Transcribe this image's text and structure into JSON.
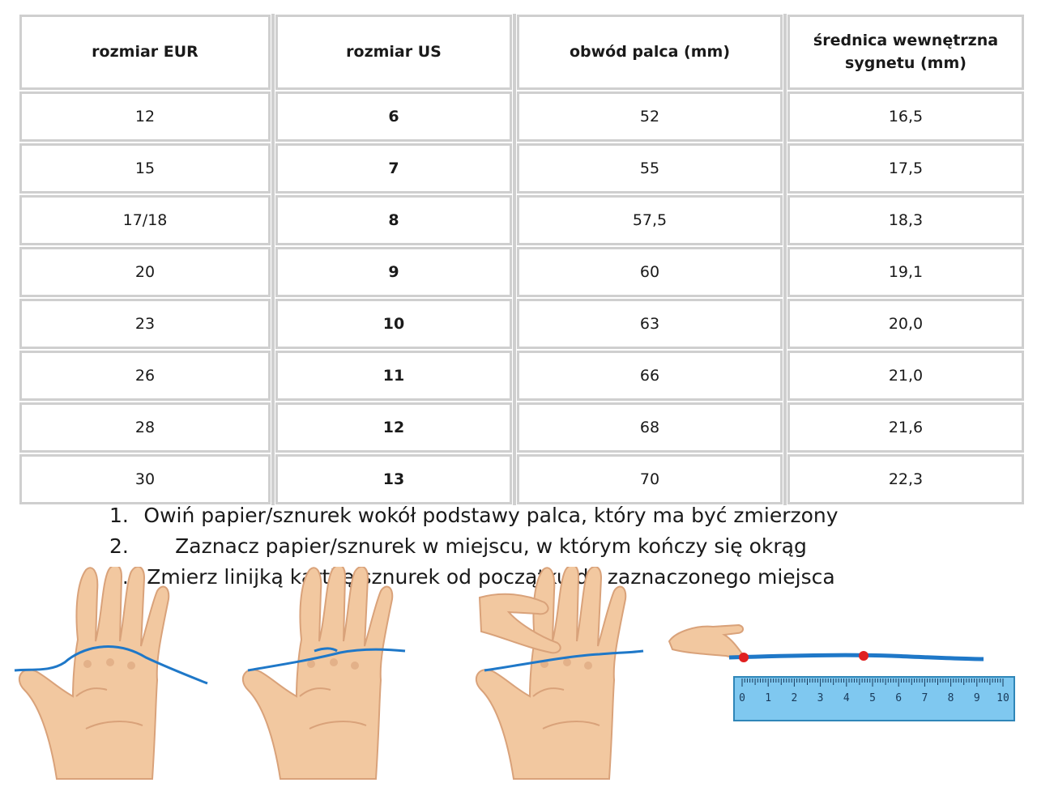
{
  "table": {
    "headers": [
      "rozmiar EUR",
      "rozmiar US",
      "obwód palca (mm)",
      "średnica wewnętrzna sygnetu (mm)"
    ],
    "rows": [
      [
        "12",
        "6",
        "52",
        "16,5"
      ],
      [
        "15",
        "7",
        "55",
        "17,5"
      ],
      [
        "17/18",
        "8",
        "57,5",
        "18,3"
      ],
      [
        "20",
        "9",
        "60",
        "19,1"
      ],
      [
        "23",
        "10",
        "63",
        "20,0"
      ],
      [
        "26",
        "11",
        "66",
        "21,0"
      ],
      [
        "28",
        "12",
        "68",
        "21,6"
      ],
      [
        "30",
        "13",
        "70",
        "22,3"
      ]
    ]
  },
  "instructions": [
    {
      "number": "1.",
      "text": "Owiń papier/sznurek wokół podstawy palca, który ma być zmierzony"
    },
    {
      "number": "2.",
      "text": "Zaznacz papier/sznurek w miejscu, w którym kończy się okrąg"
    },
    {
      "number": "3.",
      "text": "Zmierz linijką kartkę/sznurek od początku do zaznaczonego miejsca"
    }
  ],
  "ruler": {
    "labels": [
      "0",
      "1",
      "2",
      "3",
      "4",
      "5",
      "6",
      "7",
      "8",
      "9",
      "10"
    ]
  },
  "colors": {
    "grid_border": "#cfcfcf",
    "skin": "#f2c8a0",
    "skin_shadow": "#d9a27a",
    "string": "#1f78c8",
    "ruler": "#7fc8f0",
    "marker": "#e02020"
  }
}
